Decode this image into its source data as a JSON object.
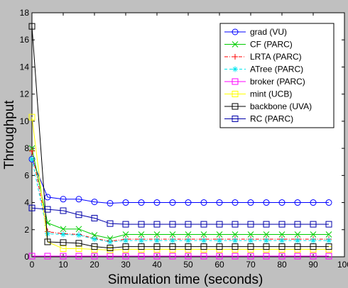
{
  "chart_data": {
    "type": "line",
    "title": "",
    "xlabel": "Simulation time (seconds)",
    "ylabel": "Throughput",
    "xlim": [
      0,
      100
    ],
    "ylim": [
      0,
      18
    ],
    "xticks": [
      0,
      10,
      20,
      30,
      40,
      50,
      60,
      70,
      80,
      90,
      100
    ],
    "yticks": [
      0,
      2,
      4,
      6,
      8,
      10,
      12,
      14,
      16,
      18
    ],
    "grid": false,
    "legend_position": "top-right",
    "x": [
      0,
      5,
      10,
      15,
      20,
      25,
      30,
      35,
      40,
      45,
      50,
      55,
      60,
      65,
      70,
      75,
      80,
      85,
      90,
      95
    ],
    "series": [
      {
        "name": "grad (VU)",
        "color": "#0000ff",
        "dash": "solid",
        "marker": "circle",
        "values": [
          7.2,
          4.4,
          4.25,
          4.25,
          4.05,
          3.95,
          4.0,
          4.0,
          4.0,
          4.0,
          4.0,
          4.0,
          4.0,
          4.0,
          4.0,
          4.0,
          4.0,
          4.0,
          4.0,
          4.0
        ]
      },
      {
        "name": "CF (PARC)",
        "color": "#00cc00",
        "dash": "solid",
        "marker": "x",
        "values": [
          8.0,
          2.5,
          2.05,
          2.05,
          1.6,
          1.35,
          1.65,
          1.65,
          1.65,
          1.65,
          1.65,
          1.65,
          1.65,
          1.65,
          1.65,
          1.65,
          1.65,
          1.65,
          1.65,
          1.65
        ]
      },
      {
        "name": "LRTA (PARC)",
        "color": "#ff0000",
        "dash": "dashdot",
        "marker": "plus",
        "values": [
          7.8,
          1.85,
          1.7,
          1.65,
          1.35,
          1.15,
          1.3,
          1.3,
          1.3,
          1.3,
          1.3,
          1.3,
          1.3,
          1.3,
          1.3,
          1.3,
          1.3,
          1.3,
          1.3,
          1.3
        ]
      },
      {
        "name": "ATree (PARC)",
        "color": "#00e5ee",
        "dash": "dashed",
        "marker": "star",
        "values": [
          7.2,
          1.7,
          1.65,
          1.6,
          1.3,
          1.1,
          1.2,
          1.2,
          1.2,
          1.2,
          1.2,
          1.2,
          1.2,
          1.2,
          1.2,
          1.2,
          1.2,
          1.2,
          1.2,
          1.2
        ]
      },
      {
        "name": "broker (PARC)",
        "color": "#ff00ff",
        "dash": "solid",
        "marker": "square",
        "values": [
          0.05,
          0.05,
          0.05,
          0.05,
          0.05,
          0.05,
          0.05,
          0.05,
          0.05,
          0.05,
          0.05,
          0.05,
          0.05,
          0.05,
          0.05,
          0.05,
          0.05,
          0.05,
          0.05,
          0.05
        ]
      },
      {
        "name": "mint (UCB)",
        "color": "#ffff00",
        "dash": "solid",
        "marker": "square",
        "values": [
          10.3,
          1.1,
          0.6,
          0.6,
          0.55,
          0.5,
          0.55,
          0.55,
          0.55,
          0.55,
          0.55,
          0.55,
          0.55,
          0.55,
          0.55,
          0.55,
          0.55,
          0.55,
          0.55,
          0.55
        ]
      },
      {
        "name": "backbone (UVA)",
        "color": "#000000",
        "dash": "solid",
        "marker": "square",
        "values": [
          17.0,
          1.1,
          1.05,
          1.0,
          0.75,
          0.65,
          0.75,
          0.75,
          0.75,
          0.75,
          0.75,
          0.75,
          0.75,
          0.75,
          0.75,
          0.75,
          0.75,
          0.75,
          0.75,
          0.75
        ]
      },
      {
        "name": "RC (PARC)",
        "color": "#0000aa",
        "dash": "solid",
        "marker": "square",
        "values": [
          3.6,
          3.5,
          3.4,
          3.1,
          2.85,
          2.45,
          2.4,
          2.4,
          2.4,
          2.4,
          2.4,
          2.4,
          2.4,
          2.4,
          2.4,
          2.4,
          2.4,
          2.4,
          2.4,
          2.4
        ]
      }
    ]
  }
}
